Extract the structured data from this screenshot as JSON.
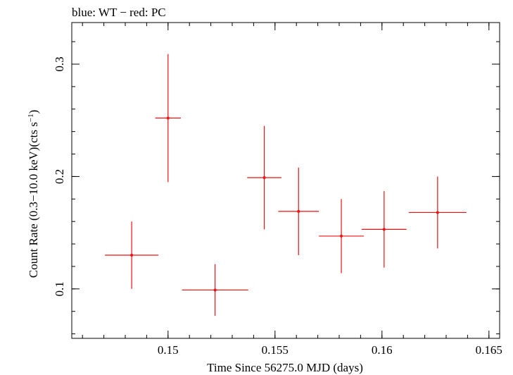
{
  "chart_data": {
    "type": "scatter",
    "title": "blue: WT − red: PC",
    "xlabel": "Time Since 56275.0 MJD (days)",
    "ylabel": "Count Rate (0.3−10.0 keV)(cts s",
    "ylabel_sup": "−1",
    "ylabel_end": ")",
    "xlim": [
      0.1455,
      0.1655
    ],
    "ylim": [
      0.056,
      0.337
    ],
    "x_ticks": [
      {
        "value": 0.15,
        "label": "0.15"
      },
      {
        "value": 0.155,
        "label": "0.155"
      },
      {
        "value": 0.16,
        "label": "0.16"
      },
      {
        "value": 0.165,
        "label": "0.165"
      }
    ],
    "y_ticks": [
      {
        "value": 0.1,
        "label": "0.1"
      },
      {
        "value": 0.2,
        "label": "0.2"
      },
      {
        "value": 0.3,
        "label": "0.3"
      }
    ],
    "x_minor_step": 0.001,
    "y_minor_step": 0.02,
    "grid": false,
    "series": [
      {
        "color": "#ee1111",
        "points": [
          {
            "x": 0.1483,
            "y": 0.13,
            "xerr": 0.00125,
            "yerr": 0.03
          },
          {
            "x": 0.15,
            "y": 0.252,
            "xerr": 0.0006,
            "yerr": 0.057
          },
          {
            "x": 0.1522,
            "y": 0.099,
            "xerr": 0.00155,
            "yerr": 0.023
          },
          {
            "x": 0.1545,
            "y": 0.199,
            "xerr": 0.0008,
            "yerr": 0.046
          },
          {
            "x": 0.1561,
            "y": 0.169,
            "xerr": 0.00095,
            "yerr": 0.039
          },
          {
            "x": 0.1581,
            "y": 0.147,
            "xerr": 0.00105,
            "yerr": 0.033
          },
          {
            "x": 0.1601,
            "y": 0.153,
            "xerr": 0.00105,
            "yerr": 0.034
          },
          {
            "x": 0.1626,
            "y": 0.168,
            "xerr": 0.00135,
            "yerr": 0.032
          }
        ]
      }
    ]
  }
}
